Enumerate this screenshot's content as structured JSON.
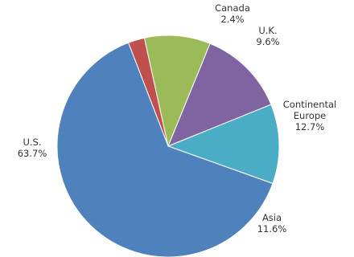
{
  "chart_data": {
    "type": "pie",
    "title": "",
    "start_angle_deg": -21,
    "direction": "clockwise",
    "slices": [
      {
        "key": "canada",
        "name": "Canada",
        "name_lines": [
          "Canada"
        ],
        "value": 2.4,
        "label": "2.4%",
        "color": "#C0504D"
      },
      {
        "key": "uk",
        "name": "U.K.",
        "name_lines": [
          "U.K."
        ],
        "value": 9.6,
        "label": "9.6%",
        "color": "#9BBB59"
      },
      {
        "key": "continental",
        "name": "Continental Europe",
        "name_lines": [
          "Continental",
          "Europe"
        ],
        "value": 12.7,
        "label": "12.7%",
        "color": "#8064A2"
      },
      {
        "key": "asia",
        "name": "Asia",
        "name_lines": [
          "Asia"
        ],
        "value": 11.6,
        "label": "11.6%",
        "color": "#4BACC6"
      },
      {
        "key": "us",
        "name": "U.S.",
        "name_lines": [
          "U.S."
        ],
        "value": 63.7,
        "label": "63.7%",
        "color": "#4F81BD"
      }
    ]
  }
}
